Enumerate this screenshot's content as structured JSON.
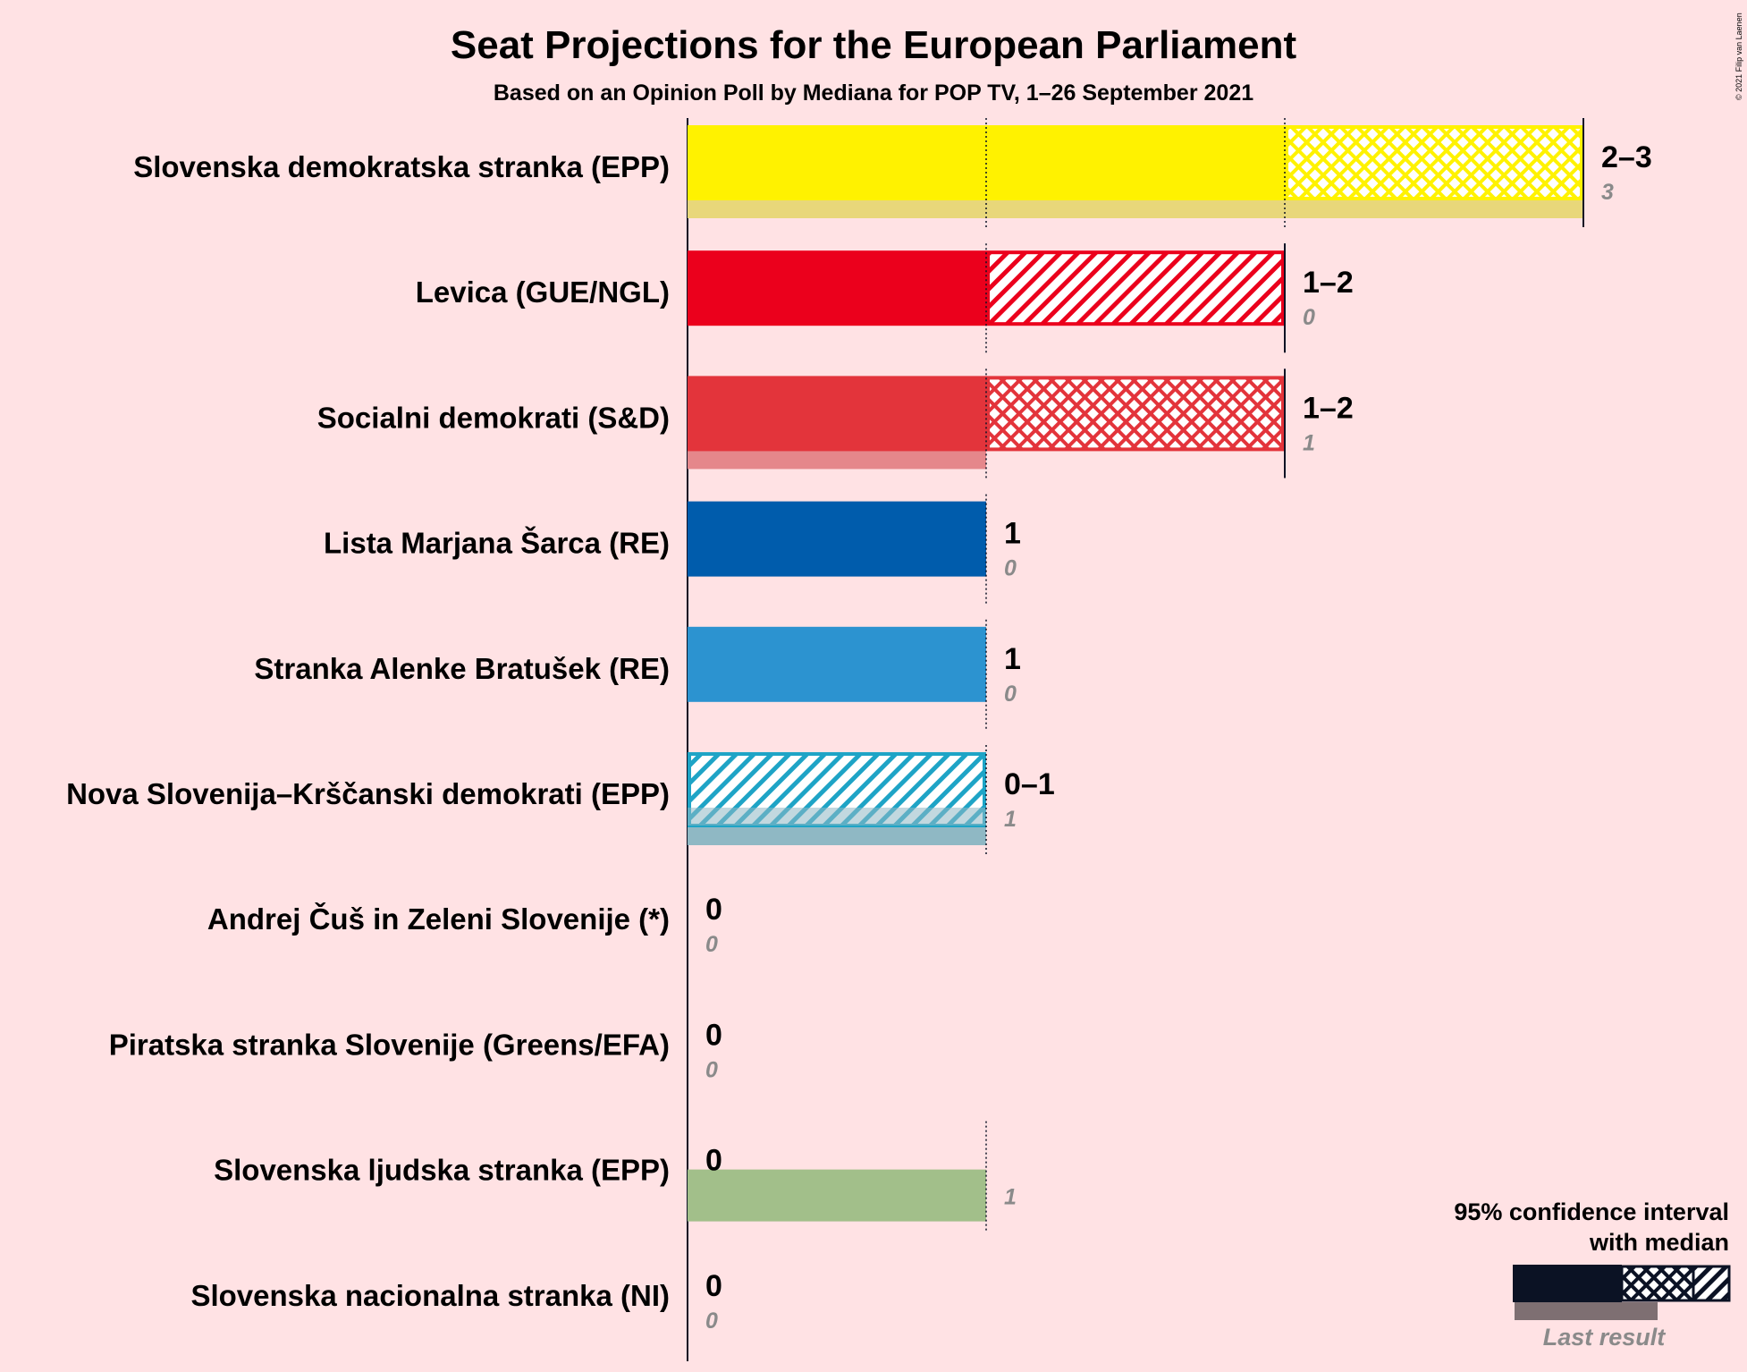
{
  "title": "Seat Projections for the European Parliament",
  "subtitle": "Based on an Opinion Poll by Mediana for POP TV, 1–26 September 2021",
  "copyright": "© 2021 Filip van Laenen",
  "chart_data": {
    "type": "bar",
    "orientation": "horizontal",
    "xlim": [
      0,
      3
    ],
    "grid": true,
    "legend_position": "bottom-right",
    "categories": [
      "Slovenska demokratska stranka (EPP)",
      "Levica (GUE/NGL)",
      "Socialni demokrati (S&D)",
      "Lista Marjana Šarca (RE)",
      "Stranka Alenke Bratušek (RE)",
      "Nova Slovenija–Krščanski demokrati (EPP)",
      "Andrej Čuš in Zeleni Slovenije (*)",
      "Piratska stranka Slovenije (Greens/EFA)",
      "Slovenska ljudska stranka (EPP)",
      "Slovenska nacionalna stranka (NI)"
    ],
    "parties": [
      {
        "name": "Slovenska demokratska stranka (EPP)",
        "low": 2,
        "median": 2,
        "high": 3,
        "range_label": "2–3",
        "last_result": 3,
        "last_label": "3",
        "color": "#FFF200",
        "last_color": "#E8D77A"
      },
      {
        "name": "Levica (GUE/NGL)",
        "low": 1,
        "median": 1,
        "high": 2,
        "range_label": "1–2",
        "last_result": 0,
        "last_label": "0",
        "color": "#EB001C",
        "last_color": "#E87A86"
      },
      {
        "name": "Socialni demokrati (S&D)",
        "low": 1,
        "median": 1,
        "high": 2,
        "range_label": "1–2",
        "last_result": 1,
        "last_label": "1",
        "color": "#E3343B",
        "last_color": "#E5878B"
      },
      {
        "name": "Lista Marjana Šarca (RE)",
        "low": 1,
        "median": 1,
        "high": 1,
        "range_label": "1",
        "last_result": 0,
        "last_label": "0",
        "color": "#005CAC",
        "last_color": "#7AA6CE"
      },
      {
        "name": "Stranka Alenke Bratušek (RE)",
        "low": 1,
        "median": 1,
        "high": 1,
        "range_label": "1",
        "last_result": 0,
        "last_label": "0",
        "color": "#2C93D0",
        "last_color": "#8FC1DF"
      },
      {
        "name": "Nova Slovenija–Krščanski demokrati (EPP)",
        "low": 0,
        "median": 0,
        "high": 1,
        "range_label": "0–1",
        "last_result": 1,
        "last_label": "1",
        "color": "#1EA4C6",
        "last_color": "#8FB8C4"
      },
      {
        "name": "Andrej Čuš in Zeleni Slovenije (*)",
        "low": 0,
        "median": 0,
        "high": 0,
        "range_label": "0",
        "last_result": 0,
        "last_label": "0",
        "color": "#555555",
        "last_color": "#AAAAAA"
      },
      {
        "name": "Piratska stranka Slovenije (Greens/EFA)",
        "low": 0,
        "median": 0,
        "high": 0,
        "range_label": "0",
        "last_result": 0,
        "last_label": "0",
        "color": "#555555",
        "last_color": "#AAAAAA"
      },
      {
        "name": "Slovenska ljudska stranka (EPP)",
        "low": 0,
        "median": 0,
        "high": 0,
        "range_label": "0",
        "last_result": 1,
        "last_label": "1",
        "color": "#6AA84F",
        "last_color": "#A2BF8A"
      },
      {
        "name": "Slovenska nacionalna stranka (NI)",
        "low": 0,
        "median": 0,
        "high": 0,
        "range_label": "0",
        "last_result": 0,
        "last_label": "0",
        "color": "#555555",
        "last_color": "#AAAAAA"
      }
    ]
  },
  "legend": {
    "title_line1": "95% confidence interval",
    "title_line2": "with median",
    "last_result_label": "Last result",
    "color": "#0B1224",
    "last_color": "#7E6F72"
  }
}
